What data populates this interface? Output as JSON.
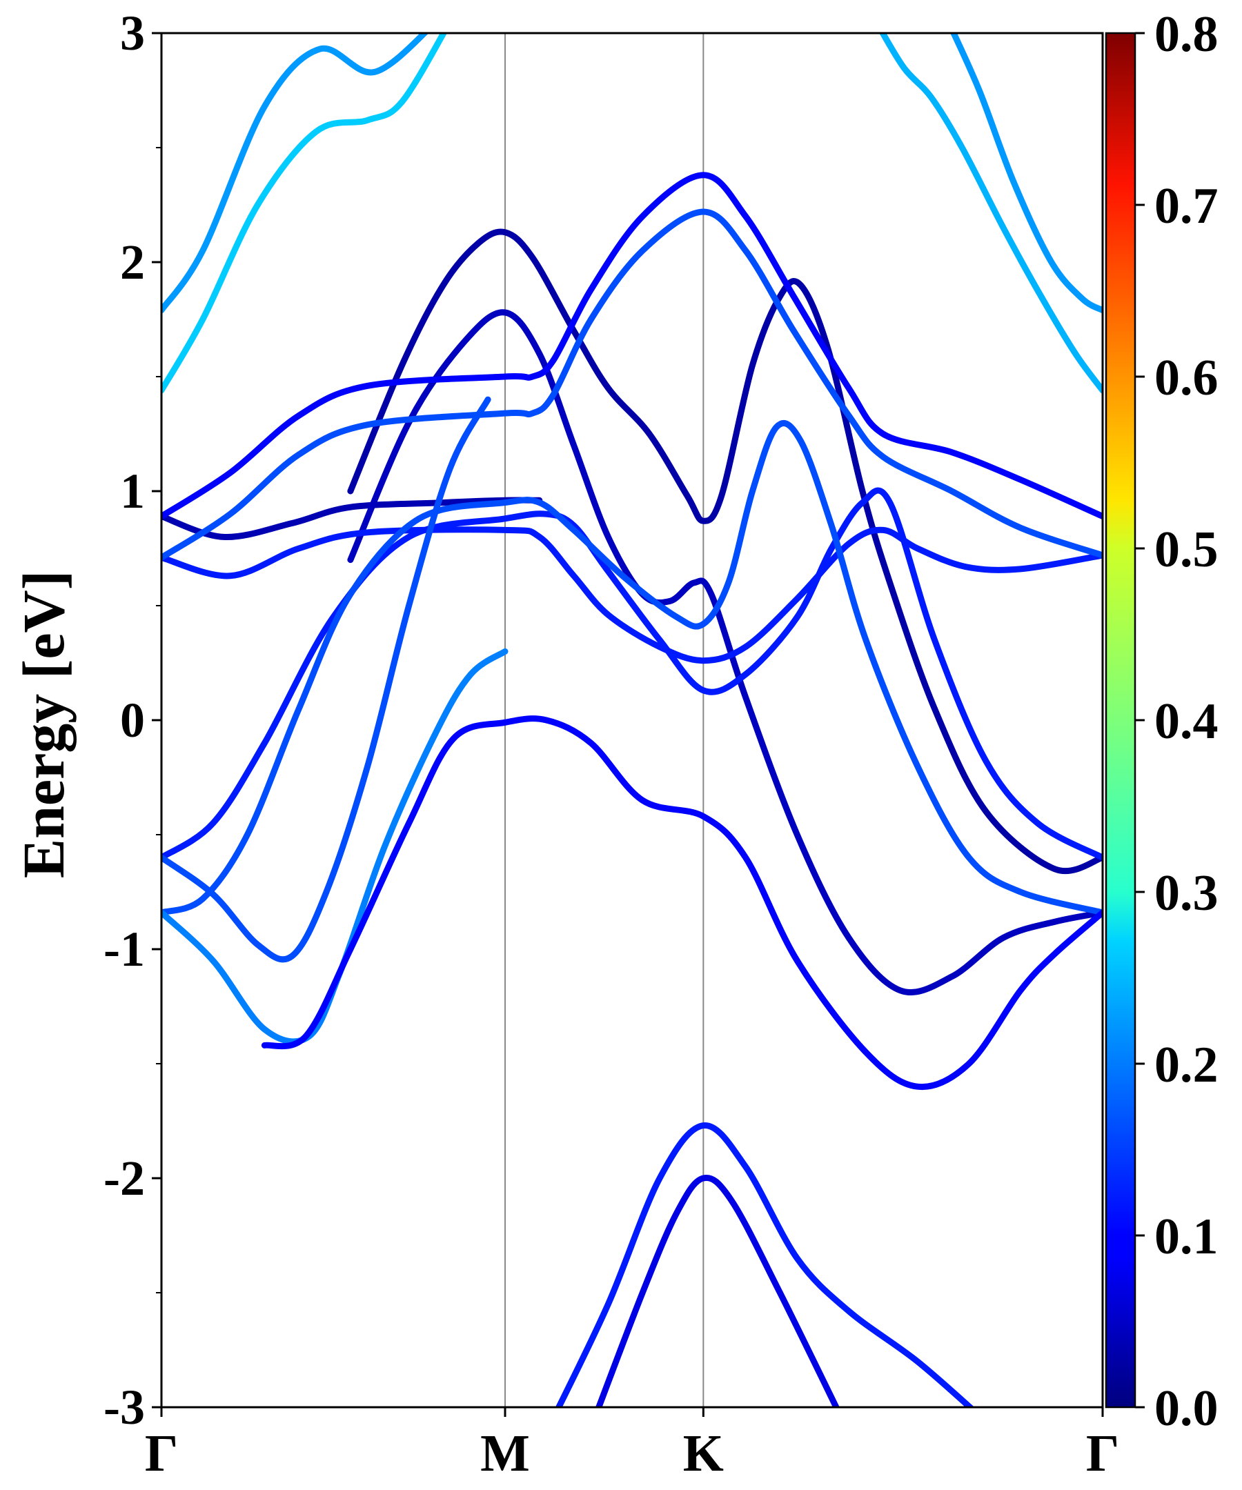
{
  "chart_data": {
    "type": "line",
    "title": "",
    "xlabel": "",
    "ylabel": "Energy [eV]",
    "ylim": [
      -3,
      3
    ],
    "yticks": [
      -3,
      -2,
      -1,
      0,
      1,
      2,
      3
    ],
    "ytick_labels": [
      "-3",
      "-2",
      "-1",
      "0",
      "1",
      "2",
      "3"
    ],
    "xlim": [
      0,
      2.739
    ],
    "high_symmetry_points": [
      {
        "label": "Γ",
        "x": 0
      },
      {
        "label": "M",
        "x": 1.0
      },
      {
        "label": "K",
        "x": 1.577
      },
      {
        "label": "Γ",
        "x": 2.739
      }
    ],
    "colorbar": {
      "colormap": "jet",
      "range": [
        0.0,
        0.8
      ],
      "tick_labels": [
        "0.0",
        "0.1",
        "0.2",
        "0.3",
        "0.4",
        "0.5",
        "0.6",
        "0.7",
        "0.8"
      ]
    },
    "legend": "none",
    "grid": false,
    "series": [
      {
        "weight": 0.22,
        "points": [
          [
            0,
            1.79
          ],
          [
            0.12,
            2.05
          ],
          [
            0.3,
            2.68
          ],
          [
            0.46,
            2.93
          ],
          [
            0.62,
            2.83
          ],
          [
            0.8,
            3.05
          ]
        ]
      },
      {
        "weight": 0.26,
        "points": [
          [
            0,
            1.44
          ],
          [
            0.12,
            1.75
          ],
          [
            0.28,
            2.25
          ],
          [
            0.45,
            2.57
          ],
          [
            0.6,
            2.62
          ],
          [
            0.7,
            2.7
          ],
          [
            0.84,
            3.05
          ]
        ]
      },
      {
        "weight": 0.24,
        "points": [
          [
            2.08,
            3.05
          ],
          [
            2.16,
            2.85
          ],
          [
            2.24,
            2.72
          ],
          [
            2.33,
            2.5
          ],
          [
            2.45,
            2.15
          ],
          [
            2.56,
            1.85
          ],
          [
            2.66,
            1.6
          ],
          [
            2.739,
            1.44
          ]
        ]
      },
      {
        "weight": 0.22,
        "points": [
          [
            2.29,
            3.05
          ],
          [
            2.38,
            2.75
          ],
          [
            2.48,
            2.35
          ],
          [
            2.59,
            2.0
          ],
          [
            2.68,
            1.84
          ],
          [
            2.739,
            1.79
          ]
        ]
      },
      {
        "weight": 0.04,
        "points": [
          [
            0,
            0.89
          ],
          [
            0.18,
            0.8
          ],
          [
            0.38,
            0.86
          ],
          [
            0.55,
            0.93
          ],
          [
            0.82,
            0.95
          ],
          [
            1.0,
            0.96
          ],
          [
            1.1,
            0.96
          ]
        ]
      },
      {
        "weight": 0.03,
        "points": [
          [
            0.55,
            1.0
          ],
          [
            0.7,
            1.55
          ],
          [
            0.82,
            1.9
          ],
          [
            0.92,
            2.08
          ],
          [
            1.0,
            2.13
          ],
          [
            1.08,
            2.02
          ],
          [
            1.2,
            1.7
          ],
          [
            1.3,
            1.45
          ],
          [
            1.42,
            1.25
          ],
          [
            1.53,
            0.98
          ],
          [
            1.577,
            0.87
          ],
          [
            1.63,
            0.98
          ],
          [
            1.72,
            1.55
          ],
          [
            1.8,
            1.85
          ],
          [
            1.86,
            1.9
          ],
          [
            1.94,
            1.62
          ],
          [
            2.04,
            1.0
          ],
          [
            2.12,
            0.6
          ],
          [
            2.25,
            0.05
          ],
          [
            2.4,
            -0.4
          ],
          [
            2.6,
            -0.65
          ],
          [
            2.739,
            -0.6
          ]
        ]
      },
      {
        "weight": 0.05,
        "points": [
          [
            0.55,
            0.7
          ],
          [
            0.72,
            1.3
          ],
          [
            0.88,
            1.65
          ],
          [
            1.0,
            1.78
          ],
          [
            1.1,
            1.6
          ],
          [
            1.2,
            1.2
          ],
          [
            1.3,
            0.8
          ],
          [
            1.4,
            0.55
          ],
          [
            1.48,
            0.52
          ],
          [
            1.55,
            0.6
          ],
          [
            1.6,
            0.55
          ],
          [
            1.7,
            0.1
          ],
          [
            1.85,
            -0.5
          ],
          [
            2.0,
            -0.95
          ],
          [
            2.15,
            -1.18
          ],
          [
            2.3,
            -1.12
          ],
          [
            2.45,
            -0.95
          ],
          [
            2.6,
            -0.88
          ],
          [
            2.739,
            -0.84
          ]
        ]
      },
      {
        "weight": 0.12,
        "points": [
          [
            0,
            0.71
          ],
          [
            0.2,
            0.63
          ],
          [
            0.4,
            0.75
          ],
          [
            0.6,
            0.82
          ],
          [
            1.0,
            0.83
          ],
          [
            1.1,
            0.8
          ],
          [
            1.2,
            0.63
          ],
          [
            1.3,
            0.46
          ],
          [
            1.45,
            0.32
          ],
          [
            1.577,
            0.26
          ],
          [
            1.7,
            0.32
          ],
          [
            1.85,
            0.53
          ],
          [
            2.0,
            0.77
          ],
          [
            2.1,
            0.83
          ],
          [
            2.2,
            0.75
          ],
          [
            2.34,
            0.67
          ],
          [
            2.5,
            0.66
          ],
          [
            2.739,
            0.72
          ]
        ]
      },
      {
        "weight": 0.1,
        "points": [
          [
            0,
            0.89
          ],
          [
            0.2,
            1.08
          ],
          [
            0.4,
            1.33
          ],
          [
            0.6,
            1.46
          ],
          [
            1.0,
            1.5
          ],
          [
            1.08,
            1.5
          ],
          [
            1.14,
            1.57
          ],
          [
            1.25,
            1.88
          ],
          [
            1.4,
            2.2
          ],
          [
            1.577,
            2.38
          ],
          [
            1.7,
            2.2
          ],
          [
            1.84,
            1.85
          ],
          [
            2.0,
            1.45
          ],
          [
            2.1,
            1.25
          ],
          [
            2.3,
            1.17
          ],
          [
            2.5,
            1.05
          ],
          [
            2.739,
            0.89
          ]
        ]
      },
      {
        "weight": 0.16,
        "points": [
          [
            0,
            0.71
          ],
          [
            0.2,
            0.9
          ],
          [
            0.4,
            1.16
          ],
          [
            0.6,
            1.29
          ],
          [
            1.0,
            1.34
          ],
          [
            1.08,
            1.34
          ],
          [
            1.14,
            1.42
          ],
          [
            1.25,
            1.75
          ],
          [
            1.4,
            2.05
          ],
          [
            1.577,
            2.22
          ],
          [
            1.7,
            2.05
          ],
          [
            1.84,
            1.7
          ],
          [
            2.0,
            1.33
          ],
          [
            2.1,
            1.15
          ],
          [
            2.3,
            1.0
          ],
          [
            2.5,
            0.84
          ],
          [
            2.739,
            0.72
          ]
        ]
      },
      {
        "weight": 0.12,
        "points": [
          [
            0,
            -0.6
          ],
          [
            0.15,
            -0.45
          ],
          [
            0.3,
            -0.1
          ],
          [
            0.5,
            0.45
          ],
          [
            0.72,
            0.8
          ],
          [
            1.0,
            0.88
          ],
          [
            1.12,
            0.9
          ],
          [
            1.2,
            0.85
          ],
          [
            1.3,
            0.65
          ],
          [
            1.45,
            0.35
          ],
          [
            1.577,
            0.13
          ],
          [
            1.7,
            0.2
          ],
          [
            1.85,
            0.45
          ],
          [
            1.95,
            0.75
          ],
          [
            2.04,
            0.95
          ],
          [
            2.12,
            0.95
          ],
          [
            2.25,
            0.35
          ],
          [
            2.4,
            -0.18
          ],
          [
            2.55,
            -0.45
          ],
          [
            2.739,
            -0.6
          ]
        ]
      },
      {
        "weight": 0.16,
        "points": [
          [
            0,
            -0.84
          ],
          [
            0.12,
            -0.78
          ],
          [
            0.25,
            -0.5
          ],
          [
            0.4,
            0.05
          ],
          [
            0.55,
            0.55
          ],
          [
            0.75,
            0.88
          ],
          [
            1.0,
            0.95
          ],
          [
            1.1,
            0.95
          ],
          [
            1.2,
            0.83
          ],
          [
            1.35,
            0.62
          ],
          [
            1.5,
            0.45
          ],
          [
            1.577,
            0.42
          ],
          [
            1.65,
            0.6
          ],
          [
            1.72,
            1.0
          ],
          [
            1.79,
            1.28
          ],
          [
            1.86,
            1.22
          ],
          [
            1.95,
            0.85
          ],
          [
            2.05,
            0.35
          ],
          [
            2.2,
            -0.2
          ],
          [
            2.35,
            -0.6
          ],
          [
            2.5,
            -0.75
          ],
          [
            2.739,
            -0.84
          ]
        ]
      },
      {
        "weight": 0.16,
        "points": [
          [
            0,
            -0.6
          ],
          [
            0.15,
            -0.76
          ],
          [
            0.28,
            -0.98
          ],
          [
            0.38,
            -1.03
          ],
          [
            0.48,
            -0.75
          ],
          [
            0.6,
            -0.2
          ],
          [
            0.72,
            0.5
          ],
          [
            0.84,
            1.1
          ],
          [
            0.95,
            1.4
          ]
        ]
      },
      {
        "weight": 0.2,
        "points": [
          [
            0,
            -0.84
          ],
          [
            0.15,
            -1.05
          ],
          [
            0.3,
            -1.35
          ],
          [
            0.43,
            -1.38
          ],
          [
            0.52,
            -1.1
          ],
          [
            0.65,
            -0.55
          ],
          [
            0.8,
            -0.05
          ],
          [
            0.9,
            0.2
          ],
          [
            1.0,
            0.3
          ]
        ]
      },
      {
        "weight": 0.1,
        "points": [
          [
            0.3,
            -1.42
          ],
          [
            0.42,
            -1.38
          ],
          [
            0.55,
            -1.0
          ],
          [
            0.72,
            -0.45
          ],
          [
            0.85,
            -0.08
          ],
          [
            1.0,
            -0.01
          ],
          [
            1.12,
            0.0
          ],
          [
            1.25,
            -0.1
          ],
          [
            1.4,
            -0.35
          ],
          [
            1.577,
            -0.42
          ],
          [
            1.7,
            -0.6
          ],
          [
            1.85,
            -1.05
          ],
          [
            2.05,
            -1.45
          ],
          [
            2.2,
            -1.6
          ],
          [
            2.35,
            -1.5
          ],
          [
            2.5,
            -1.18
          ],
          [
            2.6,
            -1.02
          ],
          [
            2.739,
            -0.84
          ]
        ]
      },
      {
        "weight": 0.12,
        "points": [
          [
            1.14,
            -3.05
          ],
          [
            1.3,
            -2.55
          ],
          [
            1.45,
            -2.0
          ],
          [
            1.577,
            -1.77
          ],
          [
            1.7,
            -1.95
          ],
          [
            1.85,
            -2.35
          ],
          [
            2.0,
            -2.58
          ],
          [
            2.2,
            -2.8
          ],
          [
            2.39,
            -3.05
          ]
        ]
      },
      {
        "weight": 0.08,
        "points": [
          [
            1.26,
            -3.05
          ],
          [
            1.4,
            -2.5
          ],
          [
            1.5,
            -2.15
          ],
          [
            1.577,
            -2.0
          ],
          [
            1.66,
            -2.1
          ],
          [
            1.8,
            -2.5
          ],
          [
            1.98,
            -3.05
          ]
        ]
      }
    ]
  }
}
